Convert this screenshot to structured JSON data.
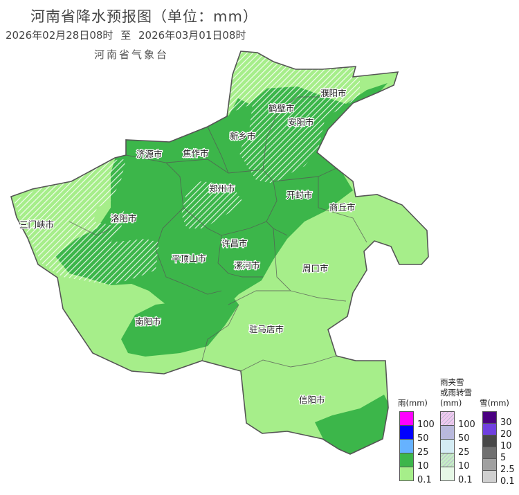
{
  "header": {
    "title": "河南省降水预报图（单位：mm）",
    "period_start": "2026年02月28日08时",
    "period_sep": "至",
    "period_end": "2026年03月01日08时",
    "agency": "河南省气象台"
  },
  "colors": {
    "rain_0_1": "#a6ee8a",
    "rain_10": "#3cb64a",
    "hatch": "#ffffff",
    "border": "#555555"
  },
  "cities": [
    {
      "id": "puyang",
      "name": "濮阳市"
    },
    {
      "id": "hebi",
      "name": "鹤壁市"
    },
    {
      "id": "anyang",
      "name": "安阳市"
    },
    {
      "id": "xinxiang",
      "name": "新乡市"
    },
    {
      "id": "jiyuan",
      "name": "济源市"
    },
    {
      "id": "jiaozuo",
      "name": "焦作市"
    },
    {
      "id": "zhengzhou",
      "name": "郑州市"
    },
    {
      "id": "kaifeng",
      "name": "开封市"
    },
    {
      "id": "shangqiu",
      "name": "商丘市"
    },
    {
      "id": "sanmenxia",
      "name": "三门峡市"
    },
    {
      "id": "luoyang",
      "name": "洛阳市"
    },
    {
      "id": "xuchang",
      "name": "许昌市"
    },
    {
      "id": "pingdingshan",
      "name": "平顶山市"
    },
    {
      "id": "luohe",
      "name": "漯河市"
    },
    {
      "id": "zhoukou",
      "name": "周口市"
    },
    {
      "id": "nanyang",
      "name": "南阳市"
    },
    {
      "id": "zhumadian",
      "name": "驻马店市"
    },
    {
      "id": "xinyang",
      "name": "信阳市"
    }
  ],
  "legend": {
    "rain": {
      "title": "雨(mm)",
      "colors": [
        "#ff00ff",
        "#0000ff",
        "#66b2ff",
        "#3cb64a",
        "#a6ee8a"
      ],
      "labels": [
        "100",
        "50",
        "25",
        "10",
        "0.1"
      ]
    },
    "sleet": {
      "title_line1": "雨夹雪",
      "title_line2": "或雨转雪",
      "title_line3": "(mm)",
      "colors": [
        "#f0c8f0",
        "#b8b8e0",
        "#d4ecf4",
        "#c4eec4",
        "#e6f8e6"
      ],
      "labels": [
        "100",
        "50",
        "25",
        "10",
        "0.1"
      ]
    },
    "snow": {
      "title": "雪(mm)",
      "colors": [
        "#4a0080",
        "#7040e0",
        "#484848",
        "#707070",
        "#a0a0a0",
        "#d0d0d0"
      ],
      "labels": [
        "30",
        "20",
        "10",
        "5",
        "2.5",
        "0.1"
      ]
    }
  }
}
